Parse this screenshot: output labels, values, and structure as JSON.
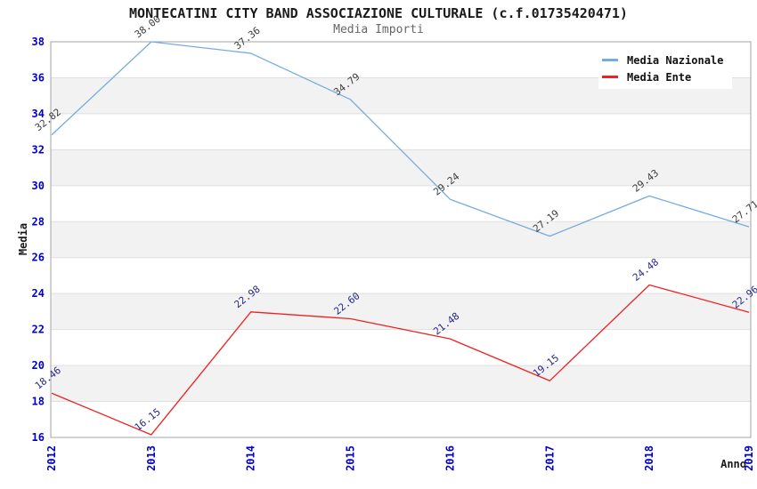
{
  "title": "MONTECATINI CITY BAND ASSOCIAZIONE CULTURALE (c.f.01735420471)",
  "subtitle": "Media Importi",
  "chart_data": {
    "type": "line",
    "x": [
      2012,
      2013,
      2014,
      2015,
      2016,
      2017,
      2018,
      2019
    ],
    "xlabel": "Anno",
    "ylabel": "Media",
    "ylim": [
      16,
      38
    ],
    "yticks": [
      16,
      18,
      20,
      22,
      24,
      26,
      28,
      30,
      32,
      34,
      36,
      38
    ],
    "grid": "horizontal, every 2 units, with alternating light-gray bands",
    "legend_position": "top-right",
    "series": [
      {
        "name": "Media Nazionale",
        "color": "#74ABE2",
        "label_color": "#3C3C3C",
        "values": [
          32.82,
          38.0,
          37.36,
          34.79,
          29.24,
          27.19,
          29.43,
          27.71
        ]
      },
      {
        "name": "Media Ente",
        "color": "#EE2222",
        "label_color": "#28288C",
        "values": [
          18.46,
          16.15,
          22.98,
          22.6,
          21.48,
          19.15,
          24.48,
          22.96
        ]
      }
    ]
  },
  "colors": {
    "axis_tick_text": "#0000CC",
    "gridline": "#DFDFDF",
    "band": "#F2F2F2",
    "plot_border": "#A6A6A6",
    "title_text": "#1A1A1A",
    "subtitle_text": "#666666"
  }
}
